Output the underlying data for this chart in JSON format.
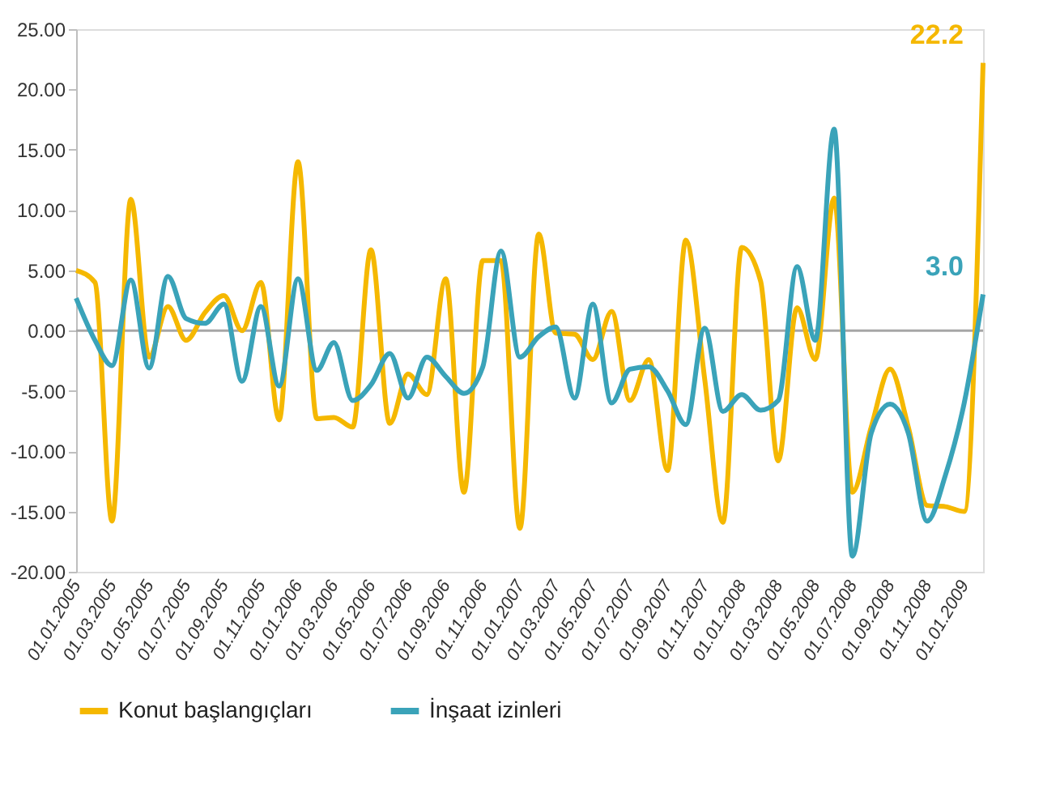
{
  "chart_data": {
    "type": "line",
    "x": [
      "2005-01",
      "2005-02",
      "2005-03",
      "2005-04",
      "2005-05",
      "2005-06",
      "2005-07",
      "2005-08",
      "2005-09",
      "2005-10",
      "2005-11",
      "2005-12",
      "2006-01",
      "2006-02",
      "2006-03",
      "2006-04",
      "2006-05",
      "2006-06",
      "2006-07",
      "2006-08",
      "2006-09",
      "2006-10",
      "2006-11",
      "2006-12",
      "2007-01",
      "2007-02",
      "2007-03",
      "2007-04",
      "2007-05",
      "2007-06",
      "2007-07",
      "2007-08",
      "2007-09",
      "2007-10",
      "2007-11",
      "2007-12",
      "2008-01",
      "2008-02",
      "2008-03",
      "2008-04",
      "2008-05",
      "2008-06",
      "2008-07",
      "2008-08",
      "2008-09",
      "2008-10",
      "2008-11",
      "2008-12",
      "2009-01",
      "2009-02"
    ],
    "series": [
      {
        "name": "Konut başlangıçları",
        "color": "#f5b800",
        "values": [
          5.0,
          4.0,
          -15.8,
          10.9,
          -2.2,
          2.0,
          -0.8,
          1.5,
          2.9,
          0.0,
          4.0,
          -7.4,
          14.0,
          -7.3,
          -7.2,
          -8.0,
          6.7,
          -7.7,
          -3.6,
          -5.3,
          4.3,
          -13.4,
          5.8,
          5.8,
          -16.4,
          8.0,
          -0.2,
          -0.3,
          -2.4,
          1.6,
          -5.8,
          -2.4,
          -11.6,
          7.5,
          -4.0,
          -15.9,
          6.9,
          4.1,
          -10.8,
          1.9,
          -2.4,
          11.0,
          -13.4,
          -8.0,
          -3.2,
          -8.0,
          -14.5,
          -14.6,
          -15.0,
          22.2
        ]
      },
      {
        "name": "İnşaat izinleri",
        "color": "#3aa3b9",
        "values": [
          2.7,
          -0.8,
          -2.9,
          4.2,
          -3.1,
          4.5,
          1.0,
          0.6,
          2.2,
          -4.2,
          2.0,
          -4.6,
          4.3,
          -3.3,
          -1.0,
          -5.8,
          -4.5,
          -1.9,
          -5.6,
          -2.2,
          -3.8,
          -5.2,
          -3.0,
          6.6,
          -2.2,
          -0.5,
          0.3,
          -5.6,
          2.2,
          -6.0,
          -3.2,
          -3.0,
          -5.0,
          -7.8,
          0.2,
          -6.7,
          -5.3,
          -6.6,
          -5.8,
          5.3,
          -0.8,
          16.7,
          -18.7,
          -8.5,
          -6.1,
          -8.5,
          -15.8,
          -12.0,
          -6.0,
          3.0
        ]
      }
    ],
    "annotations": [
      {
        "text": "22.2",
        "x": "2009-02",
        "y": 22.2
      },
      {
        "text": "3.0",
        "x": "2009-02",
        "y": 3.0
      }
    ],
    "xlim": [
      "2005-01",
      "2009-02"
    ],
    "xticks": [
      {
        "value": "2005-01",
        "label": "01.01.2005"
      },
      {
        "value": "2005-03",
        "label": "01.03.2005"
      },
      {
        "value": "2005-05",
        "label": "01.05.2005"
      },
      {
        "value": "2005-07",
        "label": "01.07.2005"
      },
      {
        "value": "2005-09",
        "label": "01.09.2005"
      },
      {
        "value": "2005-11",
        "label": "01.11.2005"
      },
      {
        "value": "2006-01",
        "label": "01.01.2006"
      },
      {
        "value": "2006-03",
        "label": "01.03.2006"
      },
      {
        "value": "2006-05",
        "label": "01.05.2006"
      },
      {
        "value": "2006-07",
        "label": "01.07.2006"
      },
      {
        "value": "2006-09",
        "label": "01.09.2006"
      },
      {
        "value": "2006-11",
        "label": "01.11.2006"
      },
      {
        "value": "2007-01",
        "label": "01.01.2007"
      },
      {
        "value": "2007-03",
        "label": "01.03.2007"
      },
      {
        "value": "2007-05",
        "label": "01.05.2007"
      },
      {
        "value": "2007-07",
        "label": "01.07.2007"
      },
      {
        "value": "2007-09",
        "label": "01.09.2007"
      },
      {
        "value": "2007-11",
        "label": "01.11.2007"
      },
      {
        "value": "2008-01",
        "label": "01.01.2008"
      },
      {
        "value": "2008-03",
        "label": "01.03.2008"
      },
      {
        "value": "2008-05",
        "label": "01.05.2008"
      },
      {
        "value": "2008-07",
        "label": "01.07.2008"
      },
      {
        "value": "2008-09",
        "label": "01.09.2008"
      },
      {
        "value": "2008-11",
        "label": "01.11.2008"
      },
      {
        "value": "2009-01",
        "label": "01.01.2009"
      }
    ],
    "ylim": [
      -20,
      25
    ],
    "yticks": [
      {
        "value": -20,
        "label": "-20.00"
      },
      {
        "value": -15,
        "label": "-15.00"
      },
      {
        "value": -10,
        "label": "-10.00"
      },
      {
        "value": -5,
        "label": "-5.00"
      },
      {
        "value": 0,
        "label": "0.00"
      },
      {
        "value": 5,
        "label": "5.00"
      },
      {
        "value": 10,
        "label": "10.00"
      },
      {
        "value": 15,
        "label": "15.00"
      },
      {
        "value": 20,
        "label": "20.00"
      },
      {
        "value": 25,
        "label": "25.00"
      }
    ],
    "ref_lines": [
      {
        "axis": "y",
        "value": 0,
        "color": "#a6a6a6"
      }
    ],
    "grid": false,
    "legend": "bottom",
    "marker": "none",
    "line_style": "solid"
  }
}
